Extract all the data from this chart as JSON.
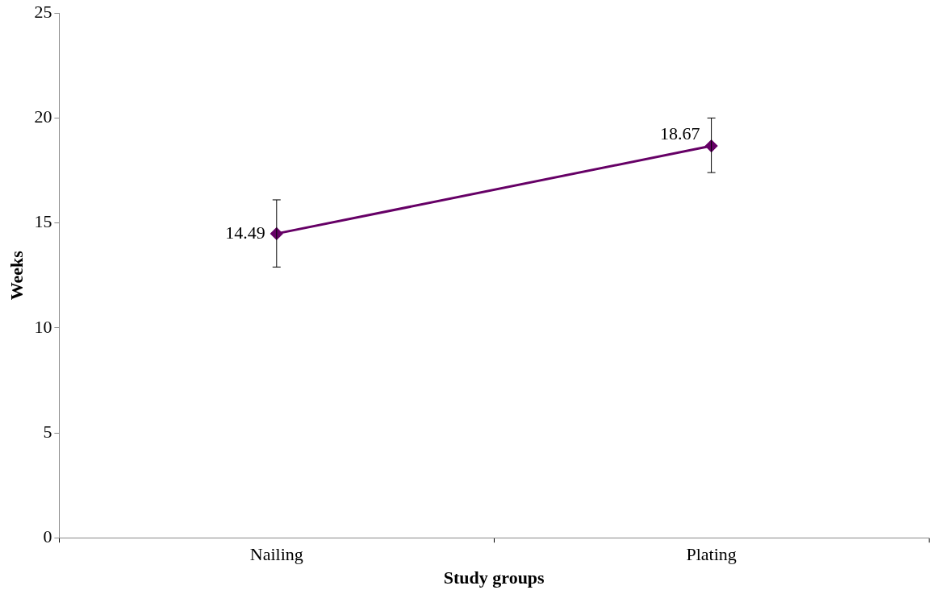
{
  "chart_data": {
    "type": "line",
    "xlabel": "Study groups",
    "ylabel": "Weeks",
    "categories": [
      "Nailing",
      "Plating"
    ],
    "series": [
      {
        "color": "#660066",
        "values": [
          14.49,
          18.67
        ],
        "errors": [
          [
            12.9,
            16.1
          ],
          [
            17.4,
            20.0
          ]
        ]
      }
    ],
    "ylim": [
      0,
      25
    ],
    "yticks": [
      0,
      5,
      10,
      15,
      20,
      25
    ],
    "grid": false,
    "legend": false,
    "marker": "diamond",
    "line_style": "solid",
    "data_labels": true
  }
}
